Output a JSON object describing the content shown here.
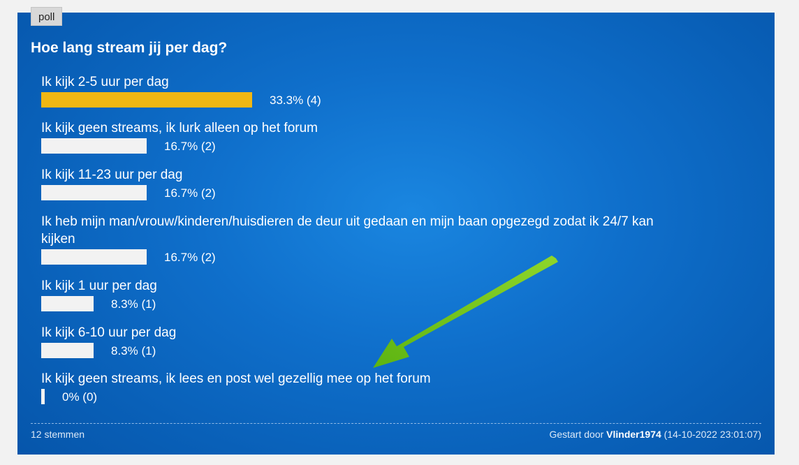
{
  "poll": {
    "tag": "poll",
    "title": "Hoe lang stream jij per dag?",
    "options": [
      {
        "label": "Ik kijk 2-5 uur per dag",
        "percent": 33.3,
        "result": "33.3% (4)",
        "leader": true
      },
      {
        "label": "Ik kijk geen streams, ik lurk alleen op het forum",
        "percent": 16.7,
        "result": "16.7% (2)"
      },
      {
        "label": "Ik kijk 11-23 uur per dag",
        "percent": 16.7,
        "result": "16.7% (2)"
      },
      {
        "label": "Ik heb mijn man/vrouw/kinderen/huisdieren de deur uit gedaan en mijn baan opgezegd zodat ik 24/7 kan kijken",
        "percent": 16.7,
        "result": "16.7% (2)"
      },
      {
        "label": "Ik kijk 1 uur per dag",
        "percent": 8.3,
        "result": "8.3% (1)"
      },
      {
        "label": "Ik kijk 6-10 uur per dag",
        "percent": 8.3,
        "result": "8.3% (1)"
      },
      {
        "label": "Ik kijk geen streams, ik lees en post wel gezellig mee op het forum",
        "percent": 0,
        "result": "0% (0)"
      }
    ],
    "footer": {
      "votes": "12 stemmen",
      "started_prefix": "Gestart door",
      "author": "Vlinder1974",
      "date": "(14-10-2022 23:01:07)"
    }
  },
  "colors": {
    "leader_bar": "#f0b713",
    "bar": "#f2f2f2",
    "background": "#0a63bb",
    "annotation_arrow": "#6cc21a"
  },
  "annotation": {
    "icon": "green-arrow-icon"
  }
}
